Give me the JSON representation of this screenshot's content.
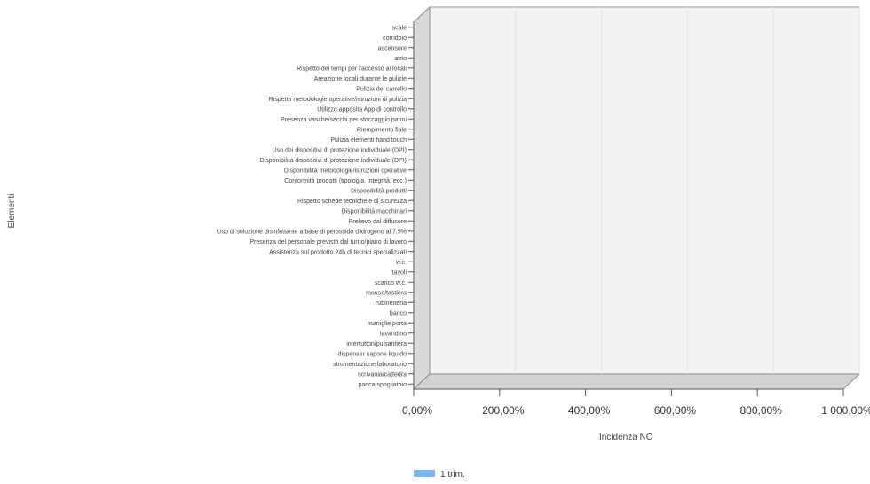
{
  "chart_data": {
    "type": "bar",
    "orientation": "horizontal",
    "style": "3d",
    "categories": [
      "scale",
      "corridoio",
      "ascensore",
      "atrio",
      "Rispetto dei tempi per l'accesso ai locali",
      "Areazione locali durante le pulizie",
      "Pulizia del carrello",
      "Rispetto metodologie operative/istruzioni di pulizia",
      "Utilizzo apposita App di controllo",
      "Presenza vasche/secchi per stoccaggio panni",
      "Riempimento fiale",
      "Pulizia elementi hand touch",
      "Uso dei dispositivi di protezione individuale (DPI)",
      "Disponibilità dispositivi di protezione individuale (DPI)",
      "Disponibilità metodologie/istruzioni operative",
      "Conformità prodotti (tipologia, integrità, ecc.)",
      "Disponibilità prodotti",
      "Rispetto schede tecniche e di sicurezza",
      "Disponibilità macchinari",
      "Prelievo dal diffusore",
      "Uso di soluzione disinfettante a base di perossido d'idrogeno al 7,5%",
      "Presenza del personale previsto dal turno/piano di lavoro",
      "Assistenza sul prodotto 24h di tecnici specializzati",
      "w.c.",
      "tavoli",
      "scarico w.c.",
      "mouse/tastiera",
      "rubinetteria",
      "banco",
      "maniglie porta",
      "lavandino",
      "interruttori/pulsantiera",
      "dispenser sapone liquido",
      "strumentazione laboratorio",
      "scrivania/cattedra",
      "panca spogliatoio"
    ],
    "series": [
      {
        "name": "1 trim.",
        "color": "#7cb5ec",
        "values": [
          0,
          0,
          0,
          0,
          0,
          0,
          0,
          0,
          0,
          0,
          0,
          0,
          0,
          0,
          0,
          0,
          0,
          0,
          0,
          0,
          0,
          0,
          0,
          0,
          0,
          0,
          0,
          0,
          0,
          0,
          0,
          0,
          0,
          0,
          0,
          0
        ]
      }
    ],
    "x_ticks": [
      "0,00%",
      "200,00%",
      "400,00%",
      "600,00%",
      "800,00%",
      "1 000,00%"
    ],
    "xlim": [
      0,
      1000
    ],
    "xlabel": "Incidenza NC",
    "ylabel": "Elementi",
    "title": "",
    "grid": true,
    "legend_position": "bottom-center"
  }
}
